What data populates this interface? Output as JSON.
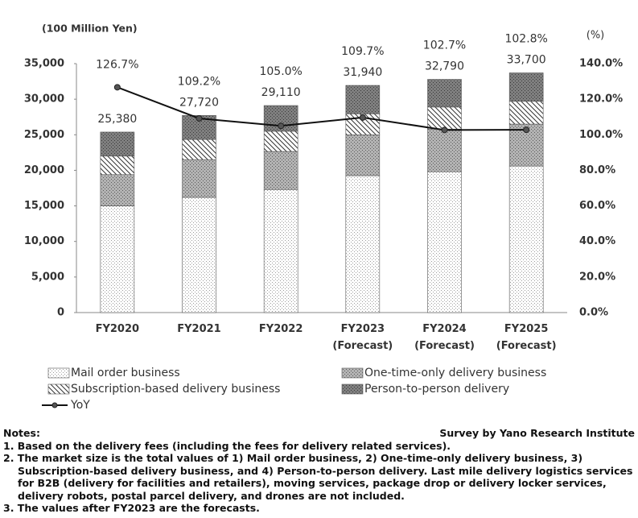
{
  "chart_data": {
    "type": "bar",
    "stacked": true,
    "y_label": "(100 Million Yen)",
    "y2_label": "(%)",
    "categories": [
      "FY2020",
      "FY2021",
      "FY2022",
      "FY2023\n(Forecast)",
      "FY2024\n(Forecast)",
      "FY2025\n(Forecast)"
    ],
    "series": [
      {
        "name": "Mail order business",
        "color": "#ffffff",
        "pattern": "dots",
        "values": [
          15000,
          16200,
          17300,
          19250,
          19800,
          20600
        ]
      },
      {
        "name": "One-time-only delivery business",
        "color": "#b3b3b3",
        "pattern": "dots",
        "values": [
          4400,
          5300,
          5350,
          5750,
          6000,
          5900
        ]
      },
      {
        "name": "Subscription-based delivery business",
        "color": "#ffffff",
        "pattern": "hatch",
        "values": [
          2600,
          2850,
          2850,
          2950,
          3100,
          3200
        ]
      },
      {
        "name": "Person-to-person delivery",
        "color": "#7f7f7f",
        "pattern": "dots",
        "values": [
          3380,
          3370,
          3610,
          3990,
          3890,
          4000
        ]
      },
      {
        "name": "YoY",
        "type": "line",
        "axis": "y2",
        "color": "#111111",
        "values": [
          126.7,
          109.2,
          105.0,
          109.7,
          102.7,
          102.8
        ],
        "value_labels": [
          "126.7%",
          "109.2%",
          "105.0%",
          "109.7%",
          "102.7%",
          "102.8%"
        ]
      }
    ],
    "totals": {
      "values": [
        25380,
        27720,
        29110,
        31940,
        32790,
        33700
      ],
      "value_labels": [
        "25,380",
        "27,720",
        "29,110",
        "31,940",
        "32,790",
        "33,700"
      ]
    },
    "ylim": [
      0,
      35000
    ],
    "yticks": [
      0,
      {
        "value": 5000,
        "label": "5,000"
      },
      {
        "value": 10000,
        "label": "10,000"
      },
      {
        "value": 15000,
        "label": "15,000"
      },
      {
        "value": 20000,
        "label": "20,000"
      },
      {
        "value": 25000,
        "label": "25,000"
      },
      {
        "value": 30000,
        "label": "30,000"
      },
      {
        "value": 35000,
        "label": "35,000"
      }
    ],
    "y2lim": [
      0,
      140
    ],
    "y2ticks": [
      {
        "value": 0,
        "label": "0.0%"
      },
      {
        "value": 20,
        "label": "20.0%"
      },
      {
        "value": 40,
        "label": "40.0%"
      },
      {
        "value": 60,
        "label": "60.0%"
      },
      {
        "value": 80,
        "label": "80.0%"
      },
      {
        "value": 100,
        "label": "100.0%"
      },
      {
        "value": 120,
        "label": "120.0%"
      },
      {
        "value": 140,
        "label": "140.0%"
      }
    ],
    "grid": false,
    "legend": "bottom"
  },
  "notes": {
    "heading": "Notes:",
    "source": "Survey by Yano Research Institute",
    "items": [
      "1. Based on the delivery fees (including the fees for delivery related services).",
      "2. The market size is the total values of 1) Mail order business, 2) One-time-only delivery business, 3) Subscription-based delivery business, and 4) Person-to-person delivery. Last mile delivery logistics services for B2B (delivery for facilities and retailers), moving services, package drop or delivery locker services, delivery robots, postal parcel delivery, and drones are not included.",
      "3. The values after FY2023 are the forecasts."
    ]
  }
}
